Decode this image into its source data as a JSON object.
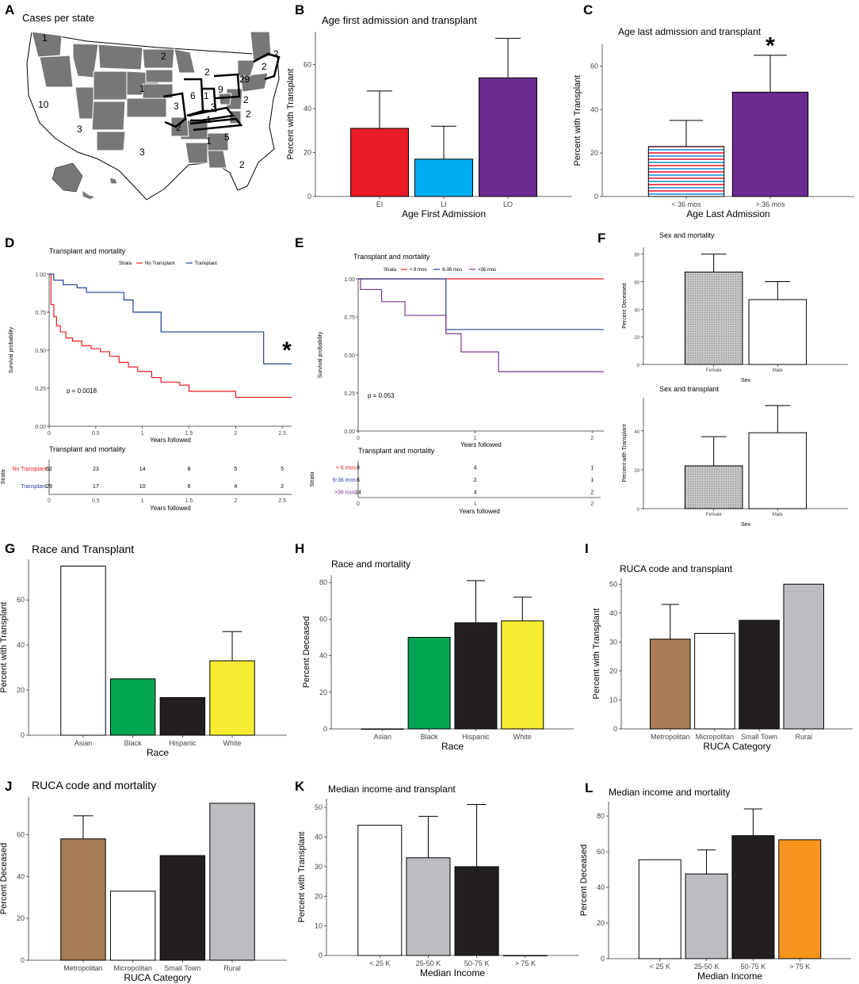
{
  "panels": {
    "A": {
      "letter": "A",
      "title": "Cases per state",
      "counts": [
        "1",
        "2",
        "2",
        "2",
        "2",
        "1",
        "6",
        "1",
        "9",
        "29",
        "3",
        "3",
        "2",
        "10",
        "3",
        "2",
        "1",
        "2",
        "3",
        "1",
        "5",
        "2"
      ]
    }
  },
  "colors": {
    "red": "#ec1c24",
    "blue": "#00aeef",
    "purple": "#6a2c91",
    "green": "#00a651",
    "black": "#231f20",
    "yellow": "#f7ec30",
    "brown": "#a67c52",
    "gray": "#bcbdc0",
    "orange": "#f7941d",
    "white": "#ffffff",
    "km_red": "#ee1c24",
    "km_blue": "#1f3f99",
    "km_purple": "#7b3294"
  },
  "chart_data": [
    {
      "id": "B",
      "type": "bar",
      "title": "Age first admission and transplant",
      "xlabel": "Age First Admission",
      "ylabel": "Percent with Transplant",
      "categories": [
        "EI",
        "LI",
        "LO"
      ],
      "values": [
        31,
        17,
        54
      ],
      "err_upper": [
        48,
        32,
        72
      ],
      "fills": [
        "red",
        "blue",
        "purple"
      ],
      "ylim": [
        0,
        75
      ],
      "yticks": [
        0,
        20,
        40,
        60
      ],
      "asterisk": ""
    },
    {
      "id": "C",
      "type": "bar",
      "title": "Age last admission and transplant",
      "xlabel": "Age Last Admission",
      "ylabel": "Percent with Transplant",
      "categories": [
        "< 36 mos",
        "> 36 mos"
      ],
      "values": [
        23,
        48
      ],
      "err_upper": [
        35,
        65
      ],
      "fills": [
        "stripes",
        "purple"
      ],
      "ylim": [
        0,
        70
      ],
      "yticks": [
        0,
        20,
        40,
        60
      ],
      "asterisk": "*"
    },
    {
      "id": "F1",
      "type": "bar",
      "title": "Sex and mortality",
      "xlabel": "Sex",
      "ylabel": "Percent Deceased",
      "categories": [
        "Female",
        "Male"
      ],
      "values": [
        67,
        47
      ],
      "err_upper": [
        80,
        60
      ],
      "fills": [
        "dots",
        "white"
      ],
      "ylim": [
        0,
        85
      ],
      "yticks": [
        0,
        20,
        40,
        60,
        80
      ],
      "asterisk": ""
    },
    {
      "id": "F2",
      "type": "bar",
      "title": "Sex and transplant",
      "xlabel": "Sex",
      "ylabel": "Percent with Transplant",
      "categories": [
        "Female",
        "Male"
      ],
      "values": [
        22,
        39
      ],
      "err_upper": [
        37,
        53
      ],
      "fills": [
        "dots",
        "white"
      ],
      "ylim": [
        0,
        57
      ],
      "yticks": [
        0,
        20,
        40
      ],
      "asterisk": ""
    },
    {
      "id": "G",
      "type": "bar",
      "title": "Race and Transplant",
      "xlabel": "Race",
      "ylabel": "Percent with Transplant",
      "categories": [
        "Asian",
        "Black",
        "Hispanic",
        "White"
      ],
      "values": [
        75,
        25,
        16.7,
        33
      ],
      "err_upper": [
        75,
        25,
        16.7,
        46
      ],
      "fills": [
        "white",
        "green",
        "black",
        "yellow"
      ],
      "ylim": [
        0,
        78
      ],
      "yticks": [
        0,
        20,
        40,
        60
      ],
      "asterisk": ""
    },
    {
      "id": "H",
      "type": "bar",
      "title": "Race and mortality",
      "xlabel": "Race",
      "ylabel": "Percent Deceased",
      "categories": [
        "Asian",
        "Black",
        "Hispanic",
        "White"
      ],
      "values": [
        0,
        50,
        58,
        59
      ],
      "err_upper": [
        0,
        50,
        81,
        72
      ],
      "fills": [
        "white",
        "green",
        "black",
        "yellow"
      ],
      "ylim": [
        0,
        84
      ],
      "yticks": [
        0,
        20,
        40,
        60,
        80
      ],
      "asterisk": ""
    },
    {
      "id": "I",
      "type": "bar",
      "title": "RUCA code and transplant",
      "xlabel": "RUCA Category",
      "ylabel": "Percent with Transplant",
      "categories": [
        "Metropolitan",
        "Micropolitan",
        "Small Town",
        "Rural"
      ],
      "values": [
        31,
        33,
        37.5,
        50
      ],
      "err_upper": [
        43,
        33,
        37.5,
        50
      ],
      "fills": [
        "brown",
        "white",
        "black",
        "gray"
      ],
      "ylim": [
        0,
        52
      ],
      "yticks": [
        0,
        10,
        20,
        30,
        40,
        50
      ],
      "asterisk": ""
    },
    {
      "id": "J",
      "type": "bar",
      "title": "RUCA code and mortality",
      "xlabel": "RUCA Category",
      "ylabel": "Percent Deceased",
      "categories": [
        "Metropolitan",
        "Micropolitan",
        "Small Town",
        "Rural"
      ],
      "values": [
        58,
        33,
        50,
        75
      ],
      "err_upper": [
        69,
        33,
        50,
        75
      ],
      "fills": [
        "brown",
        "white",
        "black",
        "gray"
      ],
      "ylim": [
        0,
        78
      ],
      "yticks": [
        0,
        20,
        40,
        60
      ],
      "asterisk": ""
    },
    {
      "id": "K",
      "type": "bar",
      "title": "Median income and transplant",
      "xlabel": "Median Income",
      "ylabel": "Percent with Transplant",
      "categories": [
        "< 25 K",
        "25-50 K",
        "50-75 K",
        "> 75 K"
      ],
      "values": [
        44,
        33,
        30,
        0
      ],
      "err_upper": [
        44,
        47,
        51,
        0
      ],
      "fills": [
        "white",
        "gray",
        "black",
        "white"
      ],
      "ylim": [
        0,
        53
      ],
      "yticks": [
        0,
        10,
        20,
        30,
        40,
        50
      ],
      "asterisk": ""
    },
    {
      "id": "L",
      "type": "bar",
      "title": "Median income and mortality",
      "xlabel": "Median Income",
      "ylabel": "Percent Deceased",
      "categories": [
        "< 25 K",
        "25-50 K",
        "50-75 K",
        "> 75 K"
      ],
      "values": [
        55.5,
        47.5,
        69,
        66.7
      ],
      "err_upper": [
        55.5,
        61,
        84,
        66.7
      ],
      "fills": [
        "white",
        "gray",
        "black",
        "orange"
      ],
      "ylim": [
        0,
        88
      ],
      "yticks": [
        0,
        20,
        40,
        60,
        80
      ],
      "asterisk": ""
    },
    {
      "id": "D",
      "type": "line",
      "title": "Transplant and mortality",
      "xlabel": "Years followed",
      "ylabel": "Survival probability",
      "strata_label": "Strata",
      "pvalue": "p = 0.0018",
      "asterisk": "*",
      "xlim": [
        0,
        2.6
      ],
      "ylim": [
        0,
        1
      ],
      "xticks": [
        0,
        0.5,
        1,
        1.5,
        2,
        2.5
      ],
      "xtick_labels": [
        "0",
        "0.5",
        "1",
        "1.5",
        "2",
        "2.5"
      ],
      "yticks": [
        0,
        0.25,
        0.5,
        0.75,
        1
      ],
      "ytick_labels": [
        "0.00",
        "0.25",
        "0.50",
        "0.75",
        "1.00"
      ],
      "series": [
        {
          "name": "No Transplant",
          "color": "km_red",
          "points": [
            [
              0,
              1
            ],
            [
              0.02,
              0.8
            ],
            [
              0.05,
              0.72
            ],
            [
              0.08,
              0.66
            ],
            [
              0.12,
              0.62
            ],
            [
              0.18,
              0.58
            ],
            [
              0.25,
              0.56
            ],
            [
              0.35,
              0.53
            ],
            [
              0.45,
              0.51
            ],
            [
              0.55,
              0.49
            ],
            [
              0.65,
              0.46
            ],
            [
              0.75,
              0.42
            ],
            [
              0.85,
              0.39
            ],
            [
              0.95,
              0.36
            ],
            [
              1.1,
              0.32
            ],
            [
              1.2,
              0.29
            ],
            [
              1.4,
              0.27
            ],
            [
              1.5,
              0.23
            ],
            [
              1.95,
              0.23
            ],
            [
              2.0,
              0.19
            ],
            [
              2.6,
              0.19
            ]
          ]
        },
        {
          "name": "Transplant",
          "color": "km_blue",
          "points": [
            [
              0,
              1
            ],
            [
              0.05,
              0.96
            ],
            [
              0.15,
              0.93
            ],
            [
              0.3,
              0.91
            ],
            [
              0.4,
              0.88
            ],
            [
              0.7,
              0.88
            ],
            [
              0.8,
              0.83
            ],
            [
              0.9,
              0.75
            ],
            [
              1.2,
              0.62
            ],
            [
              2.25,
              0.62
            ],
            [
              2.3,
              0.41
            ],
            [
              2.6,
              0.41
            ]
          ]
        }
      ],
      "risk_table": {
        "title": "Transplant and mortality",
        "xlabel": "Years followed",
        "ylabel": "Strata",
        "rows": [
          {
            "name": "No Transplant",
            "color": "km_red",
            "values": [
              "62",
              "23",
              "14",
              "8",
              "5",
              "5"
            ]
          },
          {
            "name": "Transplant",
            "color": "km_blue",
            "values": [
              "29",
              "17",
              "10",
              "6",
              "4",
              "2"
            ]
          }
        ]
      }
    },
    {
      "id": "E",
      "type": "line",
      "title": "Transplant and mortality",
      "xlabel": "Years followed",
      "ylabel": "Survival probability",
      "strata_label": "Strata",
      "pvalue": "p = 0.053",
      "asterisk": "",
      "xlim": [
        0,
        2.1
      ],
      "ylim": [
        0,
        1
      ],
      "xticks": [
        0,
        1,
        2
      ],
      "xtick_labels": [
        "0",
        "1",
        "2"
      ],
      "yticks": [
        0,
        0.25,
        0.5,
        0.75,
        1
      ],
      "ytick_labels": [
        "0.00",
        "0.25",
        "0.50",
        "0.75",
        "1.00"
      ],
      "series": [
        {
          "name": "< 6 mos",
          "color": "km_red",
          "points": [
            [
              0,
              1
            ],
            [
              2.1,
              1
            ]
          ]
        },
        {
          "name": "6-36 mos",
          "color": "km_blue",
          "points": [
            [
              0,
              1
            ],
            [
              0.75,
              1
            ],
            [
              0.75,
              0.667
            ],
            [
              2.1,
              0.667
            ]
          ]
        },
        {
          "name": ">36 mos",
          "color": "km_purple",
          "points": [
            [
              0,
              1
            ],
            [
              0.02,
              0.93
            ],
            [
              0.2,
              0.93
            ],
            [
              0.2,
              0.85
            ],
            [
              0.4,
              0.85
            ],
            [
              0.4,
              0.76
            ],
            [
              0.75,
              0.76
            ],
            [
              0.75,
              0.64
            ],
            [
              0.88,
              0.64
            ],
            [
              0.88,
              0.52
            ],
            [
              1.2,
              0.52
            ],
            [
              1.2,
              0.39
            ],
            [
              2.1,
              0.39
            ]
          ]
        }
      ],
      "risk_table": {
        "title": "Transplant and mortality",
        "xlabel": "Years followed",
        "ylabel": "Strata",
        "rows": [
          {
            "name": "< 6 mos",
            "color": "km_red",
            "values": [
              "8",
              "4",
              "1"
            ]
          },
          {
            "name": "6-36 mos",
            "color": "km_blue",
            "values": [
              "6",
              "2",
              "1"
            ]
          },
          {
            "name": ">36 mos",
            "color": "km_purple",
            "values": [
              "14",
              "4",
              "2"
            ]
          }
        ]
      }
    }
  ]
}
